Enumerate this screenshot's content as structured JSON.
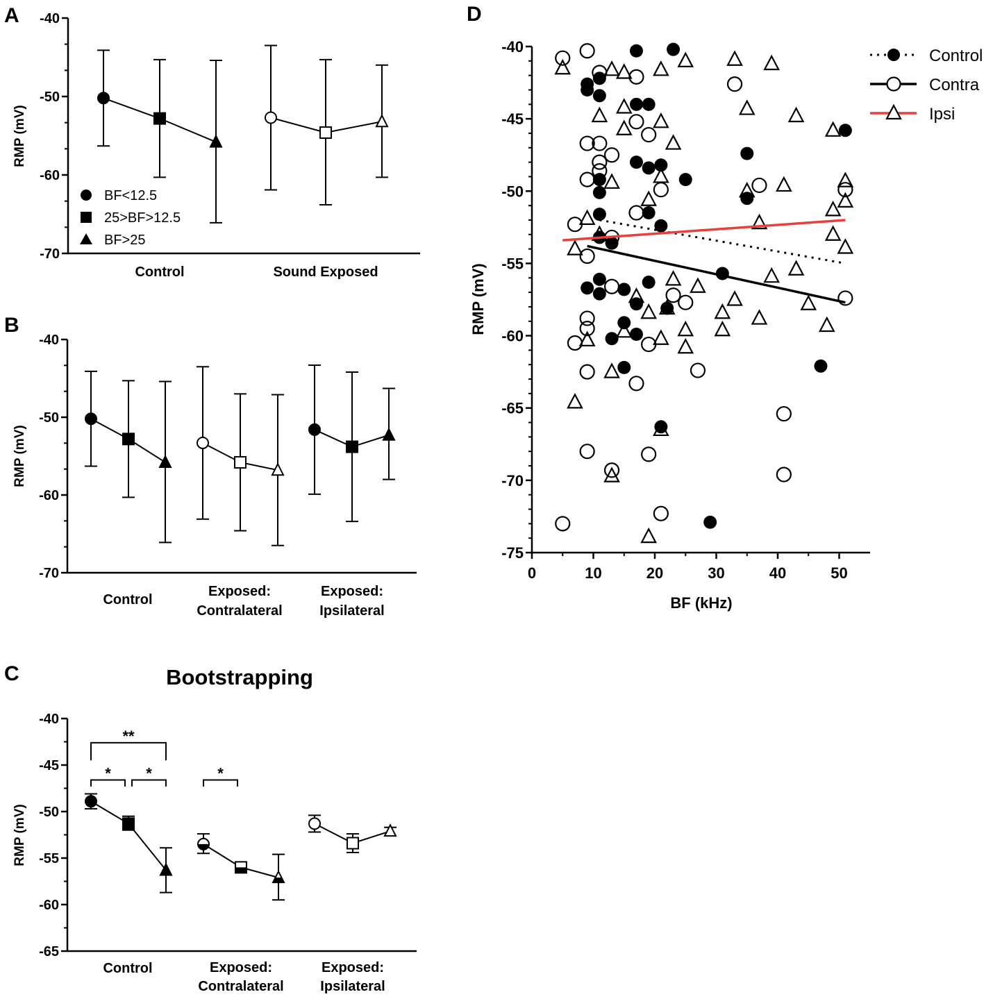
{
  "chart_data": [
    {
      "panel": "A",
      "type": "line",
      "ylabel": "RMP (mV)",
      "ylim": [
        -70,
        -40
      ],
      "yticks": [
        -40,
        -50,
        -60,
        -70
      ],
      "groups": [
        "Control",
        "Sound Exposed"
      ],
      "legend": [
        "BF<12.5",
        "25>BF>12.5",
        "BF>25"
      ],
      "series": [
        {
          "group": "Control",
          "filled": true,
          "means": [
            -50.2,
            -52.8,
            -55.8
          ],
          "err_low": [
            -56.3,
            -60.3,
            -66.1
          ],
          "err_high": [
            -44.1,
            -45.3,
            -45.4
          ]
        },
        {
          "group": "Sound Exposed",
          "filled": false,
          "means": [
            -52.7,
            -54.6,
            -53.2
          ],
          "err_low": [
            -61.9,
            -63.8,
            -60.3
          ],
          "err_high": [
            -43.5,
            -45.3,
            -46.0
          ]
        }
      ]
    },
    {
      "panel": "B",
      "type": "line",
      "ylabel": "RMP (mV)",
      "ylim": [
        -70,
        -40
      ],
      "yticks": [
        -40,
        -50,
        -60,
        -70
      ],
      "groups": [
        [
          "Control"
        ],
        [
          "Exposed:",
          "Contralateral"
        ],
        [
          "Exposed:",
          "Ipsilateral"
        ]
      ],
      "series": [
        {
          "filled": true,
          "means": [
            -50.2,
            -52.8,
            -55.8
          ],
          "err_low": [
            -56.3,
            -60.3,
            -66.1
          ],
          "err_high": [
            -44.1,
            -45.3,
            -45.4
          ]
        },
        {
          "filled": false,
          "means": [
            -53.3,
            -55.8,
            -56.8
          ],
          "err_low": [
            -63.1,
            -64.6,
            -66.5
          ],
          "err_high": [
            -43.5,
            -47.0,
            -47.1
          ]
        },
        {
          "filled": true,
          "means": [
            -51.6,
            -53.8,
            -52.3
          ],
          "err_low": [
            -59.9,
            -63.4,
            -58.0
          ],
          "err_high": [
            -43.3,
            -44.2,
            -46.3
          ]
        }
      ]
    },
    {
      "panel": "C",
      "type": "line",
      "title": "Bootstrapping",
      "ylabel": "RMP (mV)",
      "ylim": [
        -65,
        -40
      ],
      "yticks": [
        -40,
        -45,
        -50,
        -55,
        -60,
        -65
      ],
      "groups": [
        [
          "Control"
        ],
        [
          "Exposed:",
          "Contralateral"
        ],
        [
          "Exposed:",
          "Ipsilateral"
        ]
      ],
      "series": [
        {
          "filled": true,
          "means": [
            -48.9,
            -51.3,
            -56.3
          ],
          "err_low": [
            -49.7,
            -52.0,
            -58.7
          ],
          "err_high": [
            -48.1,
            -50.5,
            -53.9
          ]
        },
        {
          "filled": "half",
          "means": [
            -53.5,
            -56.0,
            -57.1
          ],
          "err_low": [
            -54.5,
            -56.3,
            -59.5
          ],
          "err_high": [
            -52.4,
            -55.7,
            -54.6
          ]
        },
        {
          "filled": false,
          "means": [
            -51.3,
            -53.4,
            -52.1
          ],
          "err_low": [
            -52.2,
            -54.4,
            -52.6
          ],
          "err_high": [
            -50.4,
            -52.4,
            -51.7
          ]
        }
      ],
      "significance": [
        {
          "label": "**",
          "from": [
            0,
            0
          ],
          "to": [
            0,
            2
          ]
        },
        {
          "label": "*",
          "from": [
            0,
            0
          ],
          "to": [
            0,
            1
          ]
        },
        {
          "label": "*",
          "from": [
            0,
            1
          ],
          "to": [
            0,
            2
          ]
        },
        {
          "label": "*",
          "from": [
            1,
            0
          ],
          "to": [
            1,
            1
          ]
        }
      ]
    },
    {
      "panel": "D",
      "type": "scatter",
      "xlabel": "BF (kHz)",
      "ylabel": "RMP (mV)",
      "xlim": [
        0,
        55
      ],
      "ylim": [
        -75,
        -40
      ],
      "xticks": [
        0,
        10,
        20,
        30,
        40,
        50
      ],
      "yticks": [
        -40,
        -45,
        -50,
        -55,
        -60,
        -65,
        -70,
        -75
      ],
      "legend": [
        "Control",
        "Contra",
        "Ipsi"
      ],
      "series": [
        {
          "name": "Control",
          "marker": "filled-circle",
          "fit": {
            "x": [
              11,
              51
            ],
            "y": [
              -52.0,
              -55.0
            ],
            "style": "dotted",
            "color": "#000000"
          },
          "points": [
            [
              17,
              -40.3
            ],
            [
              23,
              -40.2
            ],
            [
              9,
              -42.6
            ],
            [
              11,
              -42.2
            ],
            [
              9,
              -43.0
            ],
            [
              11,
              -43.4
            ],
            [
              17,
              -44.0
            ],
            [
              19,
              -44.0
            ],
            [
              51,
              -45.8
            ],
            [
              35,
              -47.4
            ],
            [
              17,
              -48.0
            ],
            [
              19,
              -48.4
            ],
            [
              21,
              -48.2
            ],
            [
              11,
              -49.2
            ],
            [
              25,
              -49.2
            ],
            [
              11,
              -50.1
            ],
            [
              35,
              -50.5
            ],
            [
              11,
              -51.6
            ],
            [
              19,
              -51.5
            ],
            [
              21,
              -52.4
            ],
            [
              11,
              -53.2
            ],
            [
              13,
              -53.6
            ],
            [
              31,
              -55.7
            ],
            [
              11,
              -56.1
            ],
            [
              19,
              -56.3
            ],
            [
              9,
              -56.7
            ],
            [
              11,
              -57.1
            ],
            [
              15,
              -56.8
            ],
            [
              17,
              -57.8
            ],
            [
              22,
              -58.1
            ],
            [
              15,
              -59.1
            ],
            [
              17,
              -59.9
            ],
            [
              13,
              -60.2
            ],
            [
              15,
              -62.2
            ],
            [
              47,
              -62.1
            ],
            [
              21,
              -66.3
            ],
            [
              29,
              -72.9
            ]
          ]
        },
        {
          "name": "Contra",
          "marker": "open-circle",
          "fit": {
            "x": [
              9,
              51
            ],
            "y": [
              -53.8,
              -57.7
            ],
            "style": "solid",
            "color": "#000000"
          },
          "points": [
            [
              5,
              -40.8
            ],
            [
              9,
              -40.3
            ],
            [
              11,
              -41.8
            ],
            [
              17,
              -42.1
            ],
            [
              33,
              -42.6
            ],
            [
              17,
              -45.2
            ],
            [
              19,
              -46.1
            ],
            [
              9,
              -46.7
            ],
            [
              11,
              -46.7
            ],
            [
              13,
              -47.5
            ],
            [
              11,
              -48.0
            ],
            [
              11,
              -48.6
            ],
            [
              9,
              -49.2
            ],
            [
              21,
              -49.9
            ],
            [
              37,
              -49.6
            ],
            [
              51,
              -49.9
            ],
            [
              17,
              -51.5
            ],
            [
              7,
              -52.3
            ],
            [
              13,
              -53.2
            ],
            [
              9,
              -54.5
            ],
            [
              13,
              -56.6
            ],
            [
              51,
              -57.4
            ],
            [
              23,
              -57.2
            ],
            [
              25,
              -57.7
            ],
            [
              9,
              -58.8
            ],
            [
              9,
              -59.5
            ],
            [
              7,
              -60.5
            ],
            [
              19,
              -60.6
            ],
            [
              9,
              -62.5
            ],
            [
              27,
              -62.4
            ],
            [
              17,
              -63.3
            ],
            [
              41,
              -65.4
            ],
            [
              9,
              -68.0
            ],
            [
              19,
              -68.2
            ],
            [
              13,
              -69.3
            ],
            [
              41,
              -69.6
            ],
            [
              21,
              -72.3
            ],
            [
              5,
              -73.0
            ]
          ]
        },
        {
          "name": "Ipsi",
          "marker": "open-triangle",
          "fit": {
            "x": [
              5,
              51
            ],
            "y": [
              -53.4,
              -52.0
            ],
            "style": "solid",
            "color": "#e8413c"
          },
          "points": [
            [
              5,
              -41.5
            ],
            [
              13,
              -41.6
            ],
            [
              15,
              -41.8
            ],
            [
              21,
              -41.6
            ],
            [
              25,
              -41.0
            ],
            [
              33,
              -40.9
            ],
            [
              39,
              -41.2
            ],
            [
              11,
              -44.8
            ],
            [
              15,
              -44.2
            ],
            [
              21,
              -45.2
            ],
            [
              35,
              -44.3
            ],
            [
              43,
              -44.8
            ],
            [
              15,
              -45.7
            ],
            [
              23,
              -46.7
            ],
            [
              49,
              -45.8
            ],
            [
              21,
              -49.0
            ],
            [
              13,
              -49.4
            ],
            [
              35,
              -50.0
            ],
            [
              41,
              -49.6
            ],
            [
              51,
              -49.3
            ],
            [
              19,
              -50.6
            ],
            [
              51,
              -50.7
            ],
            [
              49,
              -51.3
            ],
            [
              9,
              -51.9
            ],
            [
              37,
              -52.2
            ],
            [
              11,
              -53.0
            ],
            [
              49,
              -53.0
            ],
            [
              7,
              -54.0
            ],
            [
              51,
              -53.9
            ],
            [
              43,
              -55.4
            ],
            [
              39,
              -55.9
            ],
            [
              23,
              -56.1
            ],
            [
              27,
              -56.6
            ],
            [
              17,
              -57.3
            ],
            [
              33,
              -57.5
            ],
            [
              45,
              -57.8
            ],
            [
              19,
              -58.4
            ],
            [
              22,
              -58.1
            ],
            [
              31,
              -58.4
            ],
            [
              37,
              -58.8
            ],
            [
              48,
              -59.3
            ],
            [
              9,
              -60.3
            ],
            [
              15,
              -59.7
            ],
            [
              25,
              -59.6
            ],
            [
              31,
              -59.6
            ],
            [
              21,
              -60.2
            ],
            [
              25,
              -60.8
            ],
            [
              13,
              -62.5
            ],
            [
              7,
              -64.6
            ],
            [
              21,
              -66.5
            ],
            [
              13,
              -69.7
            ],
            [
              19,
              -73.9
            ]
          ]
        }
      ]
    }
  ],
  "panel_labels": [
    "A",
    "B",
    "C",
    "D"
  ],
  "panel_c_title": "Bootstrapping"
}
